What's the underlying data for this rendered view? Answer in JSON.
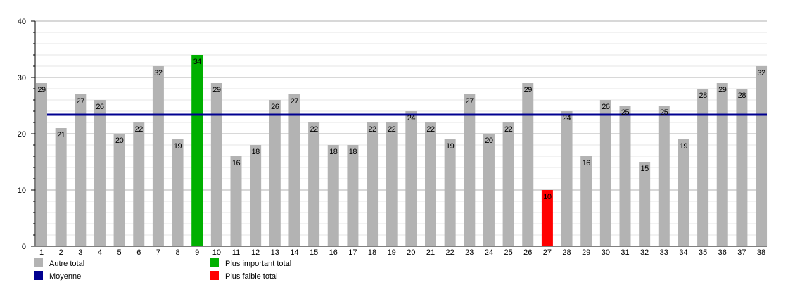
{
  "chart_data": {
    "type": "bar",
    "title": "",
    "xlabel": "",
    "ylabel": "",
    "ylim": [
      0,
      40
    ],
    "yticks": [
      0,
      10,
      20,
      30,
      40
    ],
    "grid": true,
    "legend_placement": "bottom",
    "categories": [
      "1",
      "2",
      "3",
      "4",
      "5",
      "6",
      "7",
      "8",
      "9",
      "10",
      "11",
      "12",
      "13",
      "14",
      "15",
      "16",
      "17",
      "18",
      "19",
      "20",
      "21",
      "22",
      "23",
      "24",
      "25",
      "26",
      "27",
      "28",
      "29",
      "30",
      "31",
      "32",
      "33",
      "34",
      "35",
      "36",
      "37",
      "38"
    ],
    "values": [
      29,
      21,
      27,
      26,
      20,
      22,
      32,
      19,
      34,
      29,
      16,
      18,
      26,
      27,
      22,
      18,
      18,
      22,
      22,
      24,
      22,
      19,
      27,
      20,
      22,
      29,
      10,
      24,
      16,
      26,
      25,
      15,
      25,
      19,
      28,
      29,
      28,
      32
    ],
    "mean": 23.37,
    "colors": {
      "other": "#b3b3b3",
      "max": "#00b000",
      "min": "#ff0000",
      "mean": "#000090"
    },
    "legend": [
      {
        "label": "Autre total",
        "color": "#b3b3b3"
      },
      {
        "label": "Moyenne",
        "color": "#000090"
      },
      {
        "label": "Plus important total",
        "color": "#00b000"
      },
      {
        "label": "Plus faible total",
        "color": "#ff0000"
      }
    ]
  }
}
